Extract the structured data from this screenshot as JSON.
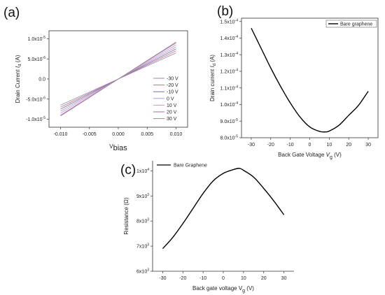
{
  "chart_data": [
    {
      "panel": "(a)",
      "type": "line",
      "xlabel_main": "V",
      "xlabel_sub": "bias",
      "ylabel_main": "Drain Current ",
      "ylabel_italic": "I",
      "ylabel_sub": "d",
      "ylabel_unit": " (A)",
      "xlim": [
        -0.012,
        0.012
      ],
      "ylim": [
        -1.2e-05,
        1.2e-05
      ],
      "xticks": [
        {
          "v": -0.01,
          "label": "-0.010"
        },
        {
          "v": -0.005,
          "label": "-0.005"
        },
        {
          "v": 0,
          "label": "0.000"
        },
        {
          "v": 0.005,
          "label": "0.005"
        },
        {
          "v": 0.01,
          "label": "0.010"
        }
      ],
      "yticks": [
        {
          "v": 1e-05,
          "label": "1.0x10",
          "exp": "-5"
        },
        {
          "v": 5e-06,
          "label": "5.0x10",
          "exp": "-6"
        },
        {
          "v": 0,
          "label": "0.0",
          "exp": ""
        },
        {
          "v": -5e-06,
          "label": "-5.0x10",
          "exp": "-6"
        },
        {
          "v": -1e-05,
          "label": "-1.0x10",
          "exp": "-5"
        }
      ],
      "legend_position": "bottom-right",
      "series": [
        {
          "name": "-30 V",
          "color": "#8a8ac8",
          "x": [
            -0.01,
            0.01
          ],
          "y": [
            -6.5e-06,
            6.5e-06
          ]
        },
        {
          "name": "-20 V",
          "color": "#d07070",
          "x": [
            -0.01,
            0.01
          ],
          "y": [
            -7e-06,
            7e-06
          ]
        },
        {
          "name": "-10 V",
          "color": "#6f6fa0",
          "x": [
            -0.01,
            0.01
          ],
          "y": [
            -7.5e-06,
            7.5e-06
          ]
        },
        {
          "name": "0 V",
          "color": "#a0a0d8",
          "x": [
            -0.01,
            0.01
          ],
          "y": [
            -8e-06,
            8e-06
          ]
        },
        {
          "name": "10 V",
          "color": "#d890c8",
          "x": [
            -0.01,
            0.01
          ],
          "y": [
            -8.5e-06,
            8.5e-06
          ]
        },
        {
          "name": "20 V",
          "color": "#b060b0",
          "x": [
            -0.01,
            0.01
          ],
          "y": [
            -9e-06,
            9e-06
          ]
        },
        {
          "name": "30 V",
          "color": "#909090",
          "x": [
            -0.01,
            0.01
          ],
          "y": [
            -9.2e-06,
            9.2e-06
          ]
        }
      ]
    },
    {
      "panel": "(b)",
      "type": "line",
      "xlabel_main": "Back Gate Voltage ",
      "xlabel_italic": "V",
      "xlabel_sub": "g",
      "xlabel_unit": " (V)",
      "ylabel_main": "Drain current ",
      "ylabel_italic": "I",
      "ylabel_sub": "d",
      "ylabel_unit": " (A)",
      "xlim": [
        -35,
        35
      ],
      "ylim": [
        8e-05,
        0.000152
      ],
      "xticks": [
        {
          "v": -30,
          "label": "-30"
        },
        {
          "v": -20,
          "label": "-20"
        },
        {
          "v": -10,
          "label": "-10"
        },
        {
          "v": 0,
          "label": "0"
        },
        {
          "v": 10,
          "label": "10"
        },
        {
          "v": 20,
          "label": "20"
        },
        {
          "v": 30,
          "label": "30"
        }
      ],
      "yticks": [
        {
          "v": 0.00015,
          "label": "1.5x10",
          "exp": "-4"
        },
        {
          "v": 0.00014,
          "label": "1.4x10",
          "exp": "-4"
        },
        {
          "v": 0.00013,
          "label": "1.3x10",
          "exp": "-4"
        },
        {
          "v": 0.00012,
          "label": "1.2x10",
          "exp": "-4"
        },
        {
          "v": 0.00011,
          "label": "1.1x10",
          "exp": "-4"
        },
        {
          "v": 0.0001,
          "label": "1.0x10",
          "exp": "-4"
        },
        {
          "v": 9e-05,
          "label": "9.0x10",
          "exp": "-5"
        },
        {
          "v": 8e-05,
          "label": "8.0x10",
          "exp": "-5"
        }
      ],
      "legend_position": "top-right",
      "series": [
        {
          "name": "Bare graphene",
          "color": "#000000",
          "x": [
            -30,
            -25,
            -20,
            -15,
            -10,
            -5,
            0,
            5,
            8,
            10,
            15,
            20,
            25,
            30
          ],
          "y": [
            0.000146,
            0.000134,
            0.000122,
            0.000111,
            0.000101,
            9.25e-05,
            8.65e-05,
            8.38e-05,
            8.35e-05,
            8.4e-05,
            8.75e-05,
            9.35e-05,
            9.95e-05,
            0.000108
          ]
        }
      ]
    },
    {
      "panel": "(c)",
      "type": "line",
      "xlabel_main": "Back gate voltage V",
      "xlabel_sub": "g",
      "xlabel_unit": " (V)",
      "ylabel_main": "Resistance (Ω)",
      "xlim": [
        -35,
        35
      ],
      "ylim": [
        6000,
        10400
      ],
      "xticks": [
        {
          "v": -30,
          "label": "-30"
        },
        {
          "v": -20,
          "label": "-20"
        },
        {
          "v": -10,
          "label": "-10"
        },
        {
          "v": 0,
          "label": "0"
        },
        {
          "v": 10,
          "label": "10"
        },
        {
          "v": 20,
          "label": "20"
        },
        {
          "v": 30,
          "label": "30"
        }
      ],
      "yticks": [
        {
          "v": 10000,
          "label": "1x10",
          "exp": "4"
        },
        {
          "v": 9000,
          "label": "9x10",
          "exp": "3"
        },
        {
          "v": 8000,
          "label": "8x10",
          "exp": "3"
        },
        {
          "v": 7000,
          "label": "7x10",
          "exp": "3"
        },
        {
          "v": 6000,
          "label": "6x10",
          "exp": "3"
        }
      ],
      "legend_position": "top-left",
      "series": [
        {
          "name": "Bare Graphene",
          "color": "#000000",
          "x": [
            -30,
            -25,
            -20,
            -15,
            -10,
            -5,
            0,
            5,
            8,
            10,
            15,
            20,
            25,
            30
          ],
          "y": [
            6900,
            7350,
            7900,
            8500,
            9100,
            9600,
            9900,
            10050,
            10100,
            10020,
            9750,
            9300,
            8800,
            8250
          ]
        }
      ]
    }
  ]
}
